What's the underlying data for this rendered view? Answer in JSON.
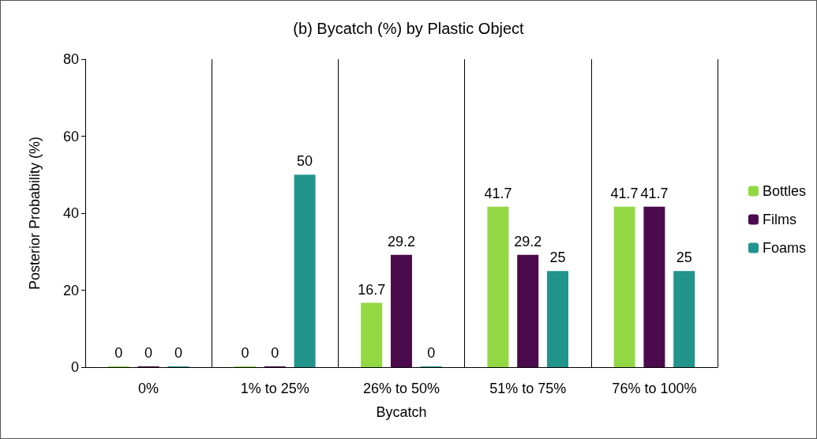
{
  "chart_data": {
    "type": "bar",
    "title": "(b) Bycatch (%) by Plastic Object",
    "xlabel": "Bycatch",
    "ylabel": "Posterior Probability (%)",
    "categories": [
      "0%",
      "1% to 25%",
      "26% to 50%",
      "51% to 75%",
      "76% to 100%"
    ],
    "series": [
      {
        "name": "Bottles",
        "color": "#92d843",
        "values": [
          0,
          0,
          16.7,
          41.7,
          41.7
        ]
      },
      {
        "name": "Films",
        "color": "#4b0a4b",
        "values": [
          0,
          0,
          29.2,
          29.2,
          41.7
        ]
      },
      {
        "name": "Foams",
        "color": "#21948c",
        "values": [
          0,
          50,
          0,
          25,
          25
        ]
      }
    ],
    "ylim": [
      0,
      80
    ],
    "yticks": [
      0,
      20,
      40,
      60,
      80
    ],
    "grid": "x",
    "legend": "right",
    "data_labels": true
  }
}
